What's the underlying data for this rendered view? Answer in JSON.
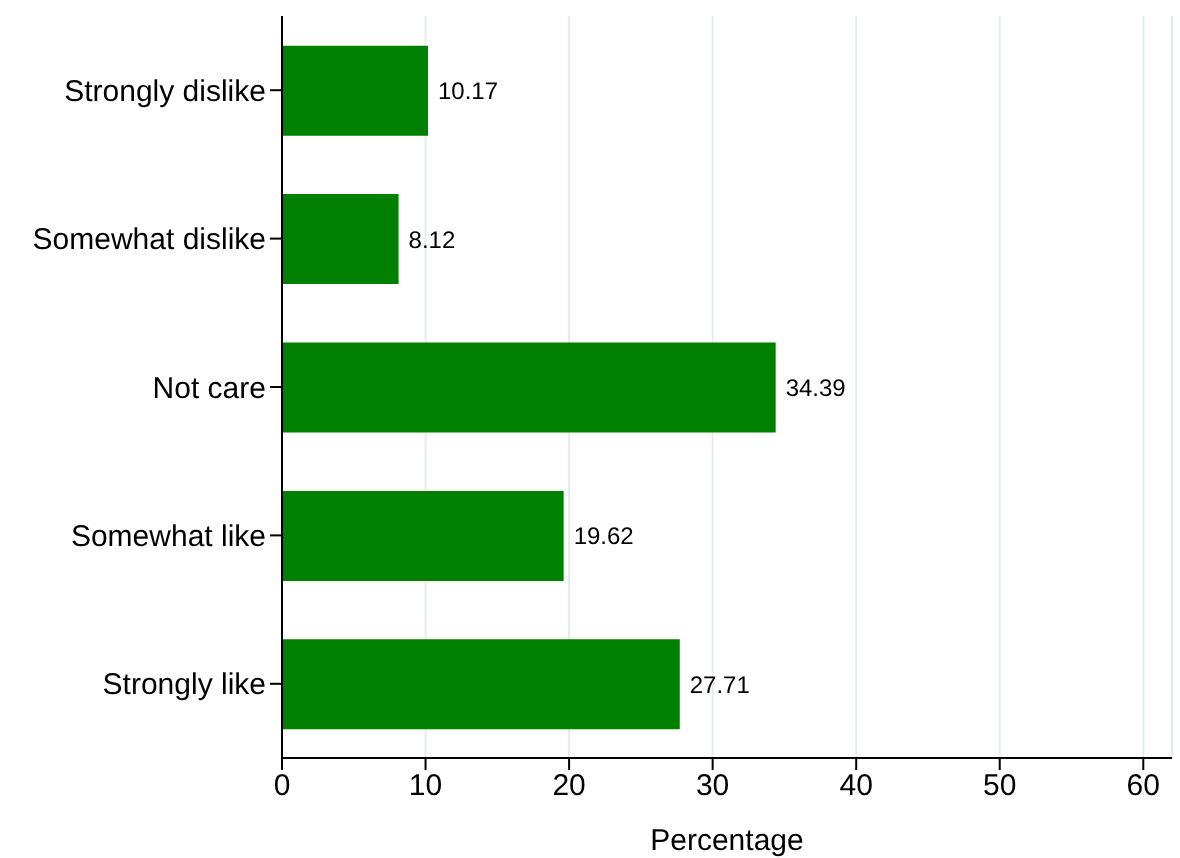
{
  "chart_data": {
    "type": "bar",
    "orientation": "horizontal",
    "categories": [
      "Strongly dislike",
      "Somewhat dislike",
      "Not care",
      "Somewhat like",
      "Strongly like"
    ],
    "values": [
      10.17,
      8.12,
      34.39,
      19.62,
      27.71
    ],
    "color": "#008000",
    "xlabel": "Percentage",
    "xlim": [
      0,
      62
    ],
    "xticks": [
      0,
      10,
      20,
      30,
      40,
      50,
      60
    ],
    "grid": "x",
    "data_labels": true
  }
}
